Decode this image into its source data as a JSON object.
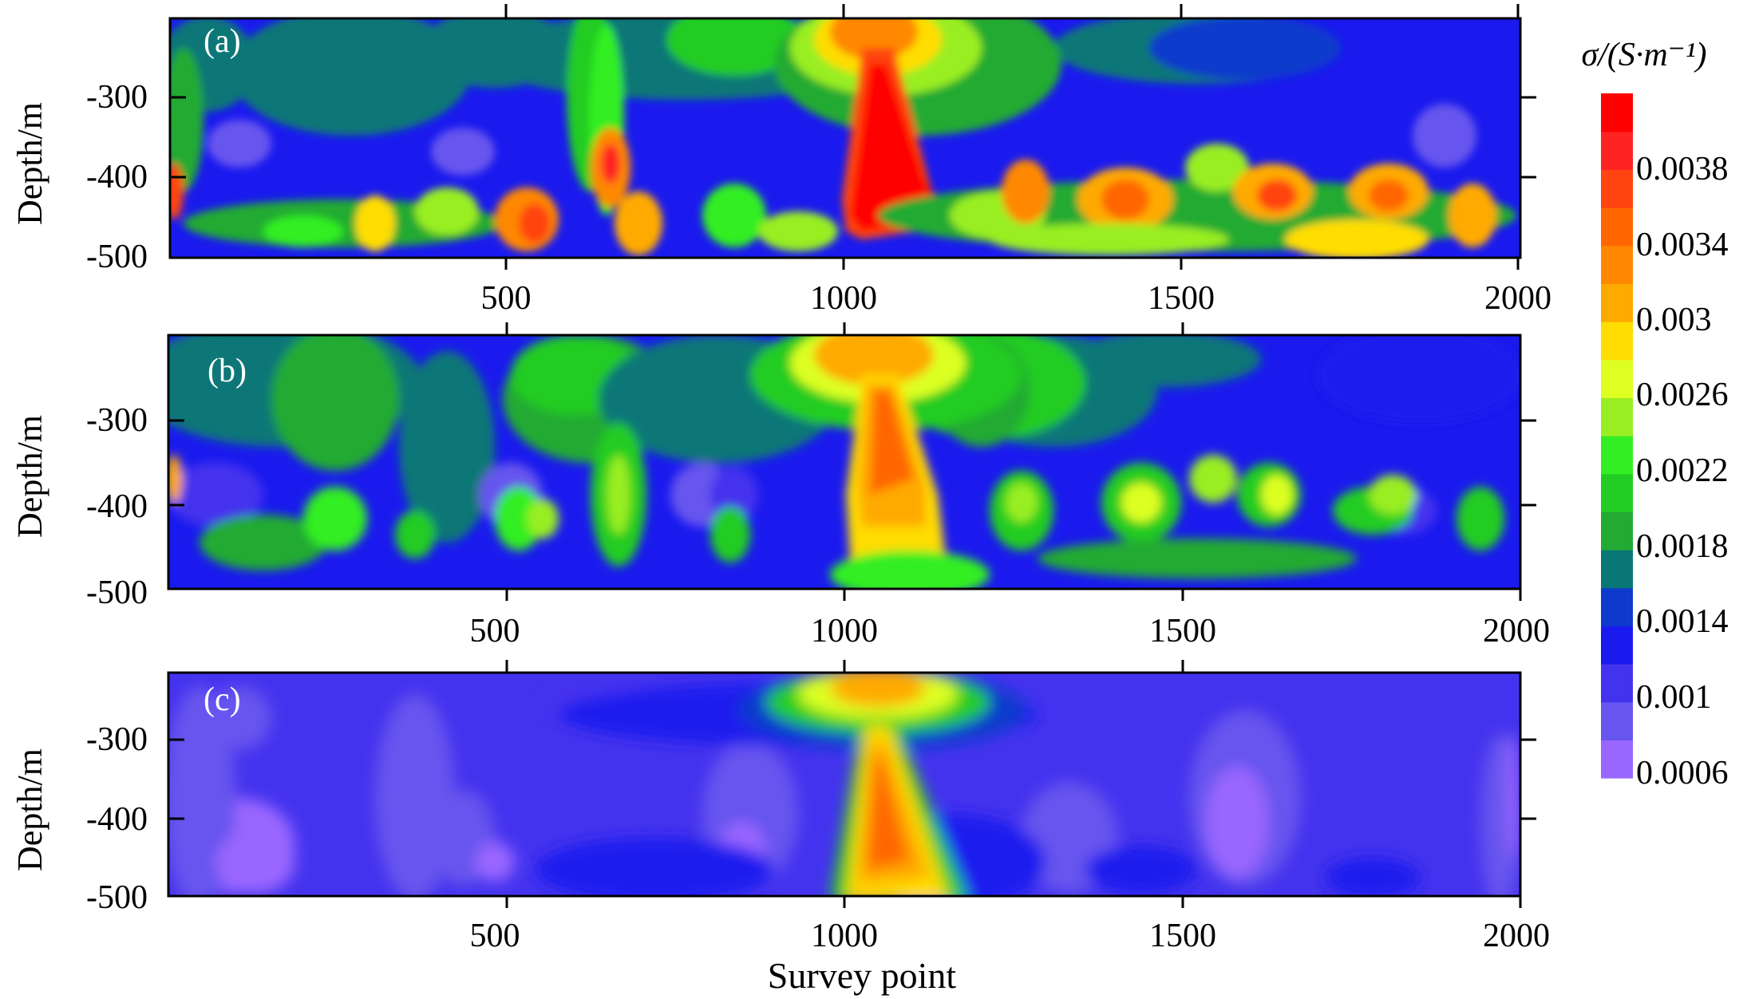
{
  "figure": {
    "xlabel": "Survey point",
    "ylabel": "Depth/m",
    "colorbar_title": "σ/(S·m⁻¹)",
    "colorbar_ticks": [
      "0.0006",
      "0.001",
      "0.0014",
      "0.0018",
      "0.0022",
      "0.0026",
      "0.003",
      "0.0034",
      "0.0038"
    ]
  },
  "chart_data": [
    {
      "type": "heatmap",
      "panel_label": "(a)",
      "xlabel": "",
      "ylabel": "Depth/m",
      "xlim": [
        0,
        2000
      ],
      "ylim": [
        -500,
        -200
      ],
      "x_ticks": [
        500,
        1000,
        1500,
        2000
      ],
      "y_ticks": [
        -300,
        -400,
        -500
      ],
      "value_range": [
        0.0006,
        0.004
      ]
    },
    {
      "type": "heatmap",
      "panel_label": "(b)",
      "xlabel": "",
      "ylabel": "Depth/m",
      "xlim": [
        0,
        2000
      ],
      "ylim": [
        -500,
        -200
      ],
      "x_ticks": [
        500,
        1000,
        1500,
        2000
      ],
      "y_ticks": [
        -300,
        -400,
        -500
      ],
      "value_range": [
        0.0006,
        0.004
      ]
    },
    {
      "type": "heatmap",
      "panel_label": "(c)",
      "xlabel": "Survey point",
      "ylabel": "Depth/m",
      "xlim": [
        0,
        2000
      ],
      "ylim": [
        -500,
        -200
      ],
      "x_ticks": [
        500,
        1000,
        1500,
        2000
      ],
      "y_ticks": [
        -300,
        -400,
        -500
      ],
      "value_range": [
        0.0006,
        0.004
      ]
    }
  ],
  "colormap": [
    "#9966ff",
    "#6655ee",
    "#4433ee",
    "#1a1aee",
    "#0d3acc",
    "#0a7777",
    "#22aa33",
    "#22cc22",
    "#33ee22",
    "#99ee22",
    "#ddff22",
    "#ffdd00",
    "#ffaa00",
    "#ff8800",
    "#ff6600",
    "#ff4411",
    "#ff2222",
    "#ff0000"
  ]
}
